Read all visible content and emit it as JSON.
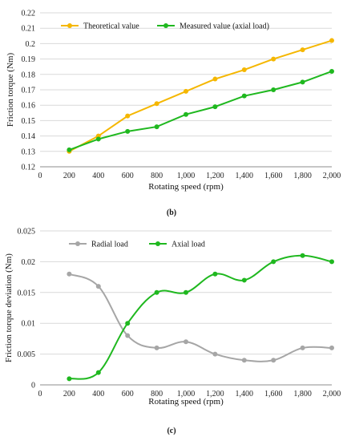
{
  "chart_data": [
    {
      "type": "line",
      "caption": "(b)",
      "xlabel": "Rotating speed (rpm)",
      "ylabel": "Friction torque (Nm)",
      "xlim": [
        0,
        2000
      ],
      "ylim": [
        0.12,
        0.22
      ],
      "xticks": [
        0,
        200,
        400,
        600,
        800,
        1000,
        1200,
        1400,
        1600,
        1800,
        2000
      ],
      "xtick_labels": [
        "0",
        "200",
        "400",
        "600",
        "800",
        "1,000",
        "1,200",
        "1,400",
        "1,600",
        "1,800",
        "2,000"
      ],
      "yticks": [
        0.12,
        0.13,
        0.14,
        0.15,
        0.16,
        0.17,
        0.18,
        0.19,
        0.2,
        0.21,
        0.22
      ],
      "ytick_labels": [
        "0.12",
        "0.13",
        "0.14",
        "0.15",
        "0.16",
        "0.17",
        "0.18",
        "0.19",
        "0.2",
        "0.21",
        "0.22"
      ],
      "grid": "horizontal",
      "legend": "top-left",
      "x": [
        200,
        400,
        600,
        800,
        1000,
        1200,
        1400,
        1600,
        1800,
        2000
      ],
      "series": [
        {
          "name": "Theoretical value",
          "color": "#f5b700",
          "smooth": false,
          "values": [
            0.13,
            0.14,
            0.153,
            0.161,
            0.169,
            0.177,
            0.183,
            0.19,
            0.196,
            0.202
          ]
        },
        {
          "name": "Measured value (axial load)",
          "color": "#1fb81f",
          "smooth": false,
          "values": [
            0.131,
            0.138,
            0.143,
            0.146,
            0.154,
            0.159,
            0.166,
            0.17,
            0.175,
            0.182
          ]
        }
      ]
    },
    {
      "type": "line",
      "caption": "(c)",
      "xlabel": "Rotating speed (rpm)",
      "ylabel": "Friction torque deviation (Nm)",
      "xlim": [
        0,
        2000
      ],
      "ylim": [
        0,
        0.025
      ],
      "xticks": [
        0,
        200,
        400,
        600,
        800,
        1000,
        1200,
        1400,
        1600,
        1800,
        2000
      ],
      "xtick_labels": [
        "0",
        "200",
        "400",
        "600",
        "800",
        "1,000",
        "1,200",
        "1,400",
        "1,600",
        "1,800",
        "2,000"
      ],
      "yticks": [
        0,
        0.005,
        0.01,
        0.015,
        0.02,
        0.025
      ],
      "ytick_labels": [
        "0",
        "0.005",
        "0.01",
        "0.015",
        "0.02",
        "0.025"
      ],
      "grid": "horizontal",
      "legend": "top-left",
      "x": [
        200,
        400,
        600,
        800,
        1000,
        1200,
        1400,
        1600,
        1800,
        2000
      ],
      "series": [
        {
          "name": "Radial load",
          "color": "#a6a6a6",
          "smooth": true,
          "values": [
            0.018,
            0.016,
            0.008,
            0.006,
            0.007,
            0.005,
            0.004,
            0.004,
            0.006,
            0.006
          ]
        },
        {
          "name": "Axial load",
          "color": "#1fb81f",
          "smooth": true,
          "values": [
            0.001,
            0.002,
            0.01,
            0.015,
            0.015,
            0.018,
            0.017,
            0.02,
            0.021,
            0.02
          ]
        }
      ]
    }
  ]
}
